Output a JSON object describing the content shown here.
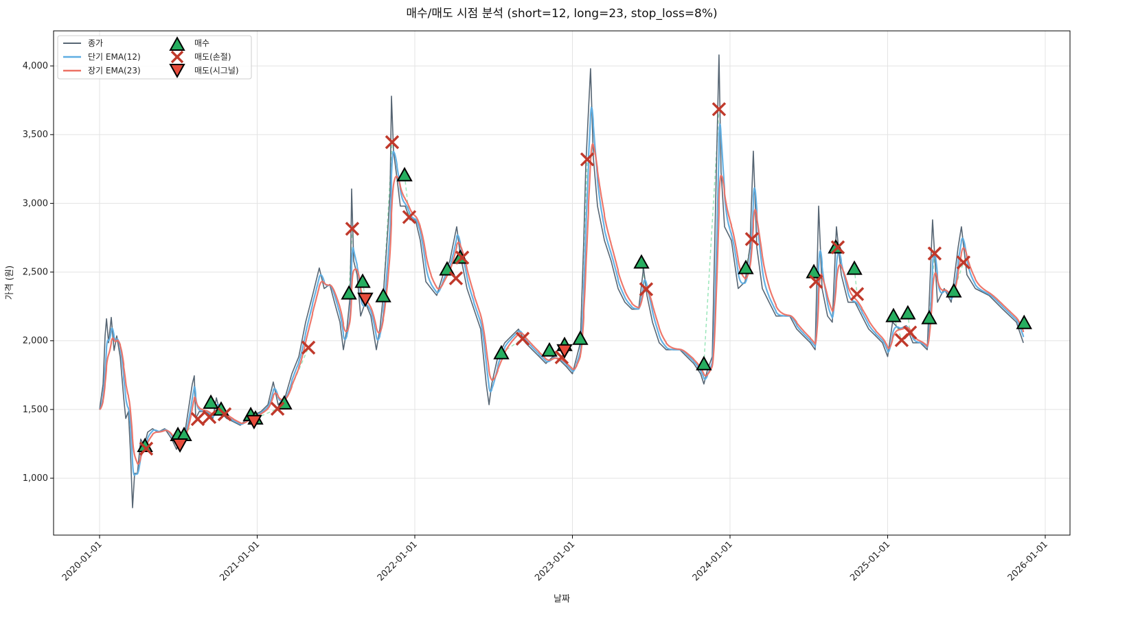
{
  "chart_data": {
    "type": "line",
    "title": "매수/매도 시점 분석 (short=12, long=23, stop_loss=8%)",
    "xlabel": "날짜",
    "ylabel": "가격 (원)",
    "x_unit": "decimal year",
    "xlim": [
      2019.708,
      2026.157
    ],
    "ylim": [
      586,
      4255
    ],
    "grid": true,
    "legend_placement": "top-left",
    "x_ticks": [
      {
        "value": 2020,
        "label": "2020-01-01"
      },
      {
        "value": 2021,
        "label": "2021-01-01"
      },
      {
        "value": 2022,
        "label": "2022-01-01"
      },
      {
        "value": 2023,
        "label": "2023-01-01"
      },
      {
        "value": 2024,
        "label": "2024-01-01"
      },
      {
        "value": 2025,
        "label": "2025-01-01"
      },
      {
        "value": 2026,
        "label": "2026-01-01"
      }
    ],
    "y_ticks": [
      {
        "value": 1000,
        "label": "1,000"
      },
      {
        "value": 1500,
        "label": "1,500"
      },
      {
        "value": 2000,
        "label": "2,000"
      },
      {
        "value": 2500,
        "label": "2,500"
      },
      {
        "value": 3000,
        "label": "3,000"
      },
      {
        "value": 3500,
        "label": "3,500"
      },
      {
        "value": 4000,
        "label": "4,000"
      }
    ],
    "legend": [
      {
        "key": "close",
        "label": "종가"
      },
      {
        "key": "ema_short",
        "label": "단기 EMA(12)"
      },
      {
        "key": "ema_long",
        "label": "장기 EMA(23)"
      },
      {
        "key": "buy",
        "label": "매수"
      },
      {
        "key": "sell_stop",
        "label": "매도(손절)"
      },
      {
        "key": "sell_signal",
        "label": "매도(시그널)"
      }
    ],
    "ema_spans": {
      "short": 12,
      "long": 23
    },
    "colors": {
      "close": "#566573",
      "ema_short": "#5dade2",
      "ema_long": "#ec7063",
      "buy": "#27ae60",
      "sell_stop": "#c0392b",
      "sell_signal": "#e74c3c",
      "trade_line": "#82e0aa",
      "grid": "#e3e3e3"
    },
    "close": [
      [
        2020.0,
        1500
      ],
      [
        2020.022,
        1685
      ],
      [
        2020.035,
        2035
      ],
      [
        2020.044,
        2160
      ],
      [
        2020.057,
        1985
      ],
      [
        2020.074,
        2170
      ],
      [
        2020.092,
        1930
      ],
      [
        2020.109,
        2035
      ],
      [
        2020.131,
        1880
      ],
      [
        2020.153,
        1585
      ],
      [
        2020.166,
        1435
      ],
      [
        2020.183,
        1485
      ],
      [
        2020.196,
        1185
      ],
      [
        2020.209,
        785
      ],
      [
        2020.222,
        1035
      ],
      [
        2020.24,
        1035
      ],
      [
        2020.261,
        1285
      ],
      [
        2020.283,
        1235
      ],
      [
        2020.305,
        1335
      ],
      [
        2020.336,
        1360
      ],
      [
        2020.37,
        1335
      ],
      [
        2020.414,
        1360
      ],
      [
        2020.458,
        1285
      ],
      [
        2020.488,
        1210
      ],
      [
        2020.51,
        1285
      ],
      [
        2020.545,
        1360
      ],
      [
        2020.588,
        1685
      ],
      [
        2020.601,
        1745
      ],
      [
        2020.61,
        1435
      ],
      [
        2020.632,
        1485
      ],
      [
        2020.675,
        1485
      ],
      [
        2020.719,
        1435
      ],
      [
        2020.741,
        1585
      ],
      [
        2020.763,
        1485
      ],
      [
        2020.806,
        1435
      ],
      [
        2020.85,
        1410
      ],
      [
        2020.893,
        1385
      ],
      [
        2020.937,
        1435
      ],
      [
        2020.98,
        1460
      ],
      [
        2021.024,
        1485
      ],
      [
        2021.068,
        1535
      ],
      [
        2021.102,
        1700
      ],
      [
        2021.133,
        1535
      ],
      [
        2021.176,
        1585
      ],
      [
        2021.22,
        1760
      ],
      [
        2021.264,
        1885
      ],
      [
        2021.307,
        2135
      ],
      [
        2021.351,
        2330
      ],
      [
        2021.394,
        2530
      ],
      [
        2021.425,
        2380
      ],
      [
        2021.46,
        2410
      ],
      [
        2021.49,
        2280
      ],
      [
        2021.525,
        2135
      ],
      [
        2021.547,
        1935
      ],
      [
        2021.569,
        2085
      ],
      [
        2021.59,
        2330
      ],
      [
        2021.599,
        3105
      ],
      [
        2021.612,
        2580
      ],
      [
        2021.634,
        2480
      ],
      [
        2021.656,
        2180
      ],
      [
        2021.686,
        2280
      ],
      [
        2021.721,
        2180
      ],
      [
        2021.756,
        1935
      ],
      [
        2021.778,
        2085
      ],
      [
        2021.8,
        2330
      ],
      [
        2021.83,
        2830
      ],
      [
        2021.843,
        3080
      ],
      [
        2021.852,
        3780
      ],
      [
        2021.865,
        3380
      ],
      [
        2021.887,
        3180
      ],
      [
        2021.908,
        2980
      ],
      [
        2021.939,
        2980
      ],
      [
        2021.969,
        2880
      ],
      [
        2022.004,
        2880
      ],
      [
        2022.035,
        2730
      ],
      [
        2022.07,
        2430
      ],
      [
        2022.104,
        2380
      ],
      [
        2022.139,
        2330
      ],
      [
        2022.179,
        2480
      ],
      [
        2022.222,
        2580
      ],
      [
        2022.266,
        2830
      ],
      [
        2022.288,
        2630
      ],
      [
        2022.331,
        2380
      ],
      [
        2022.375,
        2230
      ],
      [
        2022.418,
        2085
      ],
      [
        2022.453,
        1685
      ],
      [
        2022.471,
        1535
      ],
      [
        2022.488,
        1685
      ],
      [
        2022.527,
        1885
      ],
      [
        2022.571,
        1985
      ],
      [
        2022.614,
        2035
      ],
      [
        2022.658,
        2085
      ],
      [
        2022.702,
        1985
      ],
      [
        2022.745,
        1935
      ],
      [
        2022.789,
        1885
      ],
      [
        2022.832,
        1835
      ],
      [
        2022.876,
        1885
      ],
      [
        2022.919,
        1860
      ],
      [
        2022.963,
        1810
      ],
      [
        2023.0,
        1760
      ],
      [
        2023.028,
        1885
      ],
      [
        2023.05,
        1985
      ],
      [
        2023.072,
        2730
      ],
      [
        2023.085,
        3280
      ],
      [
        2023.102,
        3680
      ],
      [
        2023.115,
        3980
      ],
      [
        2023.133,
        3330
      ],
      [
        2023.159,
        2980
      ],
      [
        2023.203,
        2730
      ],
      [
        2023.246,
        2580
      ],
      [
        2023.29,
        2380
      ],
      [
        2023.333,
        2280
      ],
      [
        2023.377,
        2230
      ],
      [
        2023.42,
        2230
      ],
      [
        2023.451,
        2530
      ],
      [
        2023.473,
        2330
      ],
      [
        2023.508,
        2135
      ],
      [
        2023.551,
        1985
      ],
      [
        2023.595,
        1935
      ],
      [
        2023.638,
        1935
      ],
      [
        2023.682,
        1935
      ],
      [
        2023.725,
        1885
      ],
      [
        2023.769,
        1835
      ],
      [
        2023.813,
        1760
      ],
      [
        2023.834,
        1685
      ],
      [
        2023.856,
        1785
      ],
      [
        2023.887,
        1885
      ],
      [
        2023.908,
        2980
      ],
      [
        2023.93,
        4080
      ],
      [
        2023.943,
        3230
      ],
      [
        2023.965,
        2830
      ],
      [
        2024.009,
        2730
      ],
      [
        2024.052,
        2380
      ],
      [
        2024.096,
        2430
      ],
      [
        2024.126,
        2680
      ],
      [
        2024.148,
        3380
      ],
      [
        2024.17,
        2680
      ],
      [
        2024.205,
        2380
      ],
      [
        2024.248,
        2280
      ],
      [
        2024.292,
        2180
      ],
      [
        2024.336,
        2180
      ],
      [
        2024.379,
        2180
      ],
      [
        2024.423,
        2085
      ],
      [
        2024.466,
        2035
      ],
      [
        2024.51,
        1985
      ],
      [
        2024.54,
        1935
      ],
      [
        2024.562,
        2980
      ],
      [
        2024.584,
        2380
      ],
      [
        2024.619,
        2180
      ],
      [
        2024.649,
        2135
      ],
      [
        2024.675,
        2830
      ],
      [
        2024.706,
        2480
      ],
      [
        2024.749,
        2280
      ],
      [
        2024.793,
        2280
      ],
      [
        2024.837,
        2180
      ],
      [
        2024.88,
        2085
      ],
      [
        2024.924,
        2035
      ],
      [
        2024.967,
        1985
      ],
      [
        2025.0,
        1885
      ],
      [
        2025.031,
        2135
      ],
      [
        2025.074,
        2085
      ],
      [
        2025.118,
        2110
      ],
      [
        2025.16,
        1985
      ],
      [
        2025.207,
        1985
      ],
      [
        2025.251,
        1935
      ],
      [
        2025.285,
        2880
      ],
      [
        2025.316,
        2280
      ],
      [
        2025.359,
        2380
      ],
      [
        2025.403,
        2280
      ],
      [
        2025.447,
        2680
      ],
      [
        2025.468,
        2830
      ],
      [
        2025.503,
        2480
      ],
      [
        2025.556,
        2380
      ],
      [
        2025.643,
        2330
      ],
      [
        2025.73,
        2230
      ],
      [
        2025.817,
        2135
      ],
      [
        2025.861,
        1985
      ]
    ],
    "buy": [
      [
        2020.288,
        1235
      ],
      [
        2020.497,
        1315
      ],
      [
        2020.536,
        1315
      ],
      [
        2020.706,
        1550
      ],
      [
        2020.771,
        1500
      ],
      [
        2020.959,
        1460
      ],
      [
        2020.989,
        1435
      ],
      [
        2021.172,
        1545
      ],
      [
        2021.582,
        2345
      ],
      [
        2021.669,
        2430
      ],
      [
        2021.8,
        2325
      ],
      [
        2021.935,
        3205
      ],
      [
        2022.205,
        2520
      ],
      [
        2022.288,
        2605
      ],
      [
        2022.549,
        1910
      ],
      [
        2022.854,
        1930
      ],
      [
        2022.95,
        1970
      ],
      [
        2023.05,
        2015
      ],
      [
        2023.438,
        2570
      ],
      [
        2023.834,
        1830
      ],
      [
        2024.1,
        2530
      ],
      [
        2024.532,
        2500
      ],
      [
        2024.671,
        2680
      ],
      [
        2024.789,
        2525
      ],
      [
        2025.037,
        2180
      ],
      [
        2025.128,
        2200
      ],
      [
        2025.264,
        2165
      ],
      [
        2025.42,
        2360
      ],
      [
        2025.866,
        2130
      ]
    ],
    "sell_stop": [
      [
        2020.296,
        1215
      ],
      [
        2020.623,
        1430
      ],
      [
        2020.697,
        1445
      ],
      [
        2020.793,
        1465
      ],
      [
        2021.129,
        1505
      ],
      [
        2021.325,
        1950
      ],
      [
        2021.603,
        2815
      ],
      [
        2021.856,
        3445
      ],
      [
        2021.965,
        2900
      ],
      [
        2022.261,
        2455
      ],
      [
        2022.301,
        2605
      ],
      [
        2022.684,
        2015
      ],
      [
        2022.932,
        1880
      ],
      [
        2023.094,
        3320
      ],
      [
        2023.468,
        2375
      ],
      [
        2023.93,
        3685
      ],
      [
        2024.139,
        2740
      ],
      [
        2024.545,
        2430
      ],
      [
        2024.684,
        2680
      ],
      [
        2024.806,
        2340
      ],
      [
        2025.089,
        2005
      ],
      [
        2025.142,
        2060
      ],
      [
        2025.298,
        2635
      ],
      [
        2025.481,
        2570
      ]
    ],
    "sell_signal": [
      [
        2020.51,
        1245
      ],
      [
        2020.98,
        1415
      ],
      [
        2021.686,
        2305
      ],
      [
        2022.95,
        1930
      ]
    ]
  }
}
